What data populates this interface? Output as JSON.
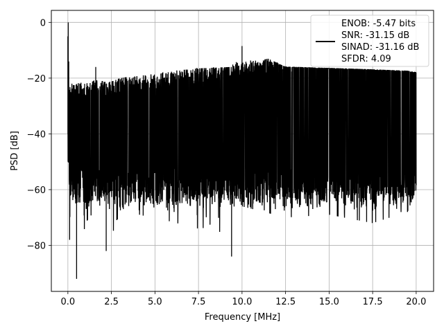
{
  "chart_data": {
    "type": "line",
    "xlabel": "Frequency [MHz]",
    "ylabel": "PSD [dB]",
    "xlim": [
      -0.95,
      21.0
    ],
    "ylim": [
      -96.5,
      4.3
    ],
    "xticks": [
      0.0,
      2.5,
      5.0,
      7.5,
      10.0,
      12.5,
      15.0,
      17.5,
      20.0
    ],
    "xtick_labels": [
      "0.0",
      "2.5",
      "5.0",
      "7.5",
      "10.0",
      "12.5",
      "15.0",
      "17.5",
      "20.0"
    ],
    "yticks": [
      0,
      -20,
      -40,
      -60,
      -80
    ],
    "ytick_labels": [
      "0",
      "−20",
      "−40",
      "−60",
      "−80"
    ],
    "grid": true,
    "legend_position": "upper-right",
    "series": [
      {
        "name": "",
        "color": "#000000",
        "description_points": {
          "x": [
            0.0,
            0.02,
            0.05,
            0.1,
            0.2,
            0.5,
            1.0,
            1.6,
            2.2,
            3.0,
            5.0,
            7.5,
            9.4,
            10.0,
            12.5,
            15.0,
            17.5,
            19.5,
            20.0
          ],
          "upper_envelope": [
            -5,
            0,
            -14,
            -23,
            -22,
            -22,
            -21,
            -16,
            -22,
            -20,
            -18,
            -16.5,
            -16,
            -8.5,
            -16,
            -16.5,
            -17,
            -17.5,
            -18
          ],
          "lower_envelope": [
            -55,
            -42,
            -65,
            -78,
            -75,
            -92,
            -72,
            -67,
            -82,
            -68,
            -70,
            -74,
            -84,
            -66,
            -70,
            -69,
            -72,
            -68,
            -60
          ]
        }
      }
    ],
    "legend_entries": [
      "ENOB: -5.47 bits",
      "SNR: -31.15 dB",
      "SINAD: -31.16 dB",
      "SFDR: 4.09"
    ]
  }
}
